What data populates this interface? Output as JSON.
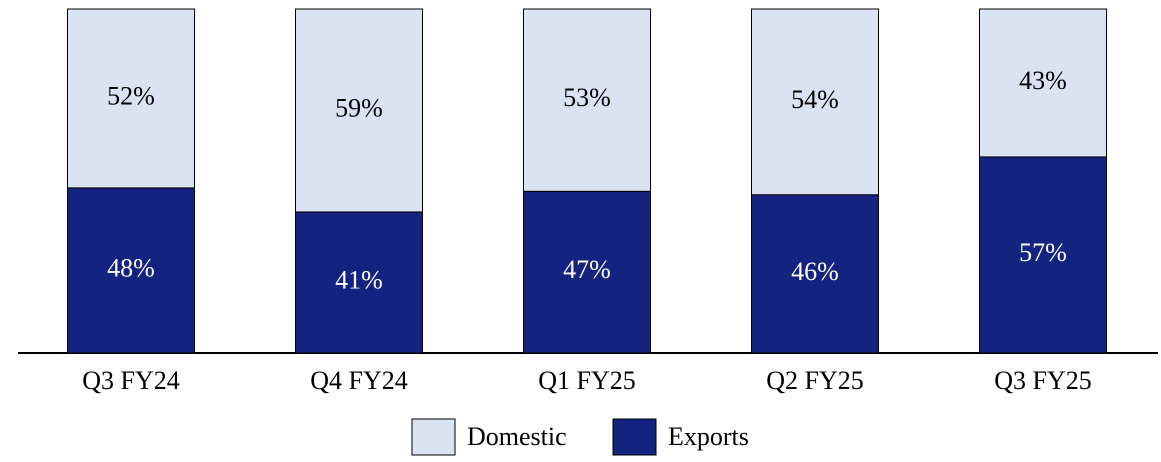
{
  "chart_data": {
    "type": "stacked_bar",
    "categories": [
      "Q3 FY24",
      "Q4 FY24",
      "Q1 FY25",
      "Q2 FY25",
      "Q3 FY25"
    ],
    "series": [
      {
        "name": "Domestic",
        "color": "#dae3f3",
        "values": [
          52,
          59,
          53,
          54,
          43
        ],
        "value_labels": [
          "52%",
          "59%",
          "53%",
          "54%",
          "43%"
        ]
      },
      {
        "name": "Exports",
        "color": "#14237f",
        "values": [
          48,
          41,
          47,
          46,
          57
        ],
        "value_labels": [
          "48%",
          "41%",
          "47%",
          "46%",
          "57%"
        ]
      }
    ]
  }
}
